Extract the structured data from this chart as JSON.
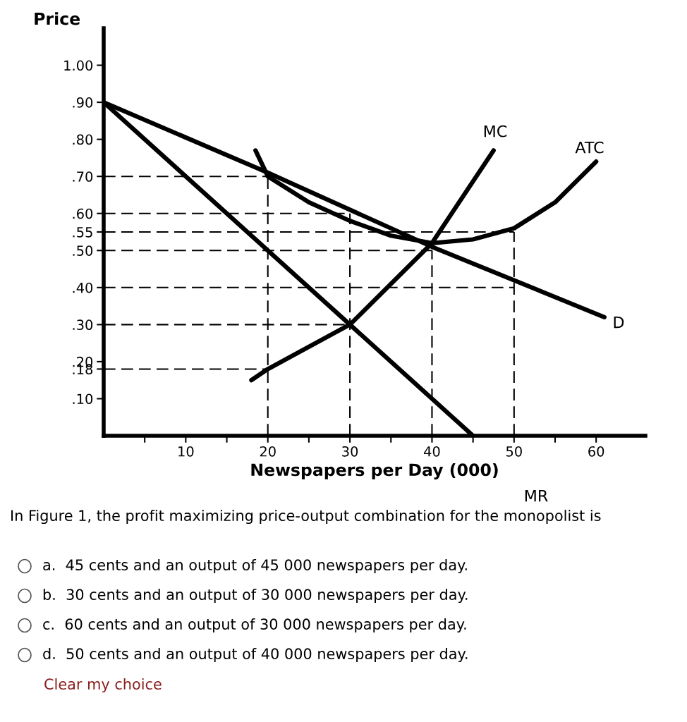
{
  "chart_data": {
    "type": "line",
    "xlabel": "Newspapers per Day (000)",
    "ylabel": "Price",
    "xlim": [
      0,
      66
    ],
    "ylim": [
      0,
      1.1
    ],
    "xticks": [
      {
        "value": 5,
        "label": null
      },
      10,
      {
        "value": 15,
        "label": null
      },
      20,
      {
        "value": 25,
        "label": null
      },
      30,
      {
        "value": 35,
        "label": null
      },
      40,
      {
        "value": 45,
        "label": null
      },
      50,
      {
        "value": 55,
        "label": null
      },
      60
    ],
    "yticks": [
      {
        "value": 1.0,
        "label": "1.00"
      },
      {
        "value": 0.9,
        "label": ".90"
      },
      {
        "value": 0.8,
        "label": ".80"
      },
      {
        "value": 0.7,
        "label": ".70"
      },
      {
        "value": 0.6,
        "label": ".60"
      },
      {
        "value": 0.55,
        "label": ".55"
      },
      {
        "value": 0.5,
        "label": ".50"
      },
      {
        "value": 0.4,
        "label": ".40"
      },
      {
        "value": 0.3,
        "label": ".30"
      },
      {
        "value": 0.2,
        "label": ".20"
      },
      {
        "value": 0.18,
        "label": ".18"
      },
      {
        "value": 0.1,
        "label": ".10"
      }
    ],
    "grid": false,
    "series": [
      {
        "color": "#000000",
        "line_style": "solid",
        "x": [
          0,
          20,
          40,
          61
        ],
        "values": [
          0.9,
          0.71,
          0.51,
          0.32
        ]
      },
      {
        "color": "#000000",
        "line_style": "solid",
        "x": [
          0,
          30,
          45
        ],
        "values": [
          0.9,
          0.3,
          0.0
        ]
      },
      {
        "color": "#000000",
        "line_style": "solid",
        "x": [
          18,
          20,
          30,
          40,
          47.5
        ],
        "values": [
          0.15,
          0.18,
          0.3,
          0.52,
          0.77
        ]
      },
      {
        "color": "#000000",
        "line_style": "solid",
        "x": [
          18.5,
          20,
          25,
          30,
          35,
          40,
          45,
          50,
          55,
          60
        ],
        "values": [
          0.77,
          0.7,
          0.63,
          0.58,
          0.54,
          0.52,
          0.53,
          0.56,
          0.63,
          0.74
        ]
      },
      {
        "color": "#000000",
        "line_style": "dashed",
        "x": [
          0,
          20
        ],
        "values": [
          0.7,
          0.7
        ]
      },
      {
        "color": "#000000",
        "line_style": "dashed",
        "x": [
          0,
          30
        ],
        "values": [
          0.6,
          0.6
        ]
      },
      {
        "color": "#000000",
        "line_style": "dashed",
        "x": [
          0,
          50
        ],
        "values": [
          0.55,
          0.55
        ]
      },
      {
        "color": "#000000",
        "line_style": "dashed",
        "x": [
          0,
          40
        ],
        "values": [
          0.5,
          0.5
        ]
      },
      {
        "color": "#000000",
        "line_style": "dashed",
        "x": [
          0,
          50
        ],
        "values": [
          0.4,
          0.4
        ]
      },
      {
        "color": "#000000",
        "line_style": "dashed",
        "x": [
          0,
          30
        ],
        "values": [
          0.3,
          0.3
        ]
      },
      {
        "color": "#000000",
        "line_style": "dashed",
        "x": [
          0,
          20
        ],
        "values": [
          0.18,
          0.18
        ]
      },
      {
        "color": "#000000",
        "line_style": "dashed",
        "x": [
          20,
          20
        ],
        "values": [
          0.0,
          0.7
        ]
      },
      {
        "color": "#000000",
        "line_style": "dashed",
        "x": [
          30,
          30
        ],
        "values": [
          0.0,
          0.6
        ]
      },
      {
        "color": "#000000",
        "line_style": "dashed",
        "x": [
          40,
          40
        ],
        "values": [
          0.0,
          0.5
        ]
      },
      {
        "color": "#000000",
        "line_style": "dashed",
        "x": [
          50,
          50
        ],
        "values": [
          0.0,
          0.55
        ]
      }
    ],
    "annotations": [
      "MC",
      "ATC",
      "D",
      "MR",
      "In Figure 1, the profit maximizing price-output combination for the monopolist is",
      "a.  45 cents and an output of 45 000 newspapers per day.",
      "b.  30 cents and an output of 30 000 newspapers per day.",
      "c.  60 cents and an output of 30 000 newspapers per day.",
      "d.  50 cents and an output of 40 000 newspapers per day.",
      "Clear my choice"
    ]
  }
}
